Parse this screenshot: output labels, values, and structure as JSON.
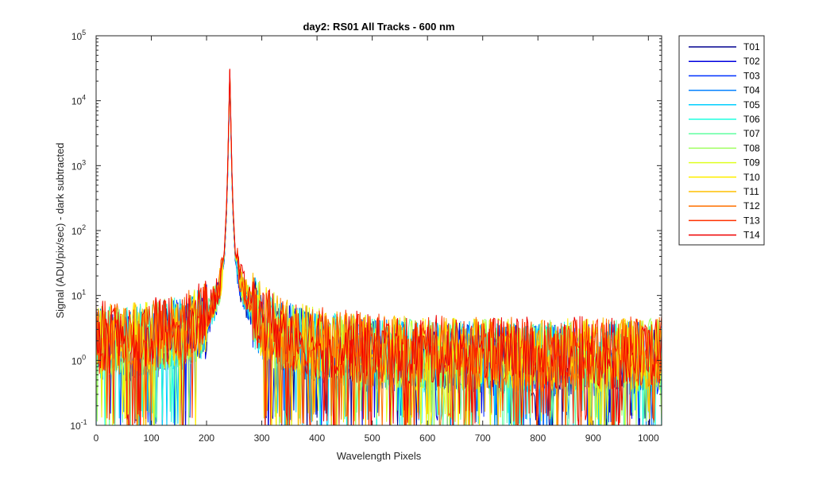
{
  "chart_data": {
    "type": "line",
    "title": "day2: RS01  All Tracks - 600 nm",
    "xlabel": "Wavelength Pixels",
    "ylabel": "Signal (ADU/pix/sec) - dark subtracted",
    "xlim": [
      0,
      1024
    ],
    "ylim": [
      0.1,
      100000
    ],
    "yscale": "log",
    "grid": false,
    "legend_position": "outside-top-right",
    "xticks": [
      "0",
      "100",
      "200",
      "300",
      "400",
      "500",
      "600",
      "700",
      "800",
      "900",
      "1000"
    ],
    "yticks": [
      {
        "base": "10",
        "exp": "-1"
      },
      {
        "base": "10",
        "exp": "0"
      },
      {
        "base": "10",
        "exp": "1"
      },
      {
        "base": "10",
        "exp": "2"
      },
      {
        "base": "10",
        "exp": "3"
      },
      {
        "base": "10",
        "exp": "4"
      },
      {
        "base": "10",
        "exp": "5"
      }
    ],
    "peak": {
      "x": 242,
      "y": 27000
    },
    "envelope": {
      "x": [
        0,
        50,
        100,
        150,
        180,
        200,
        215,
        225,
        232,
        237,
        240,
        242,
        244,
        247,
        252,
        260,
        270,
        285,
        300,
        350,
        400,
        500,
        600,
        700,
        800,
        900,
        1024
      ],
      "y": [
        2.0,
        2.0,
        2.2,
        2.8,
        3.3,
        4.5,
        8,
        15,
        40,
        300,
        4000,
        27000,
        4000,
        300,
        40,
        18,
        10,
        6,
        3.8,
        2.3,
        1.7,
        1.3,
        1.2,
        1.2,
        1.15,
        1.15,
        1.2
      ]
    },
    "series": [
      {
        "name": "T01",
        "color": "#00008f"
      },
      {
        "name": "T02",
        "color": "#0000df"
      },
      {
        "name": "T03",
        "color": "#0030ff"
      },
      {
        "name": "T04",
        "color": "#0080ff"
      },
      {
        "name": "T05",
        "color": "#00cfff"
      },
      {
        "name": "T06",
        "color": "#20ffdf"
      },
      {
        "name": "T07",
        "color": "#60ffa0"
      },
      {
        "name": "T08",
        "color": "#9fff60"
      },
      {
        "name": "T09",
        "color": "#dfff20"
      },
      {
        "name": "T10",
        "color": "#ffef00"
      },
      {
        "name": "T11",
        "color": "#ffbf00"
      },
      {
        "name": "T12",
        "color": "#ff7000"
      },
      {
        "name": "T13",
        "color": "#ff3000"
      },
      {
        "name": "T14",
        "color": "#ef0000"
      }
    ]
  }
}
